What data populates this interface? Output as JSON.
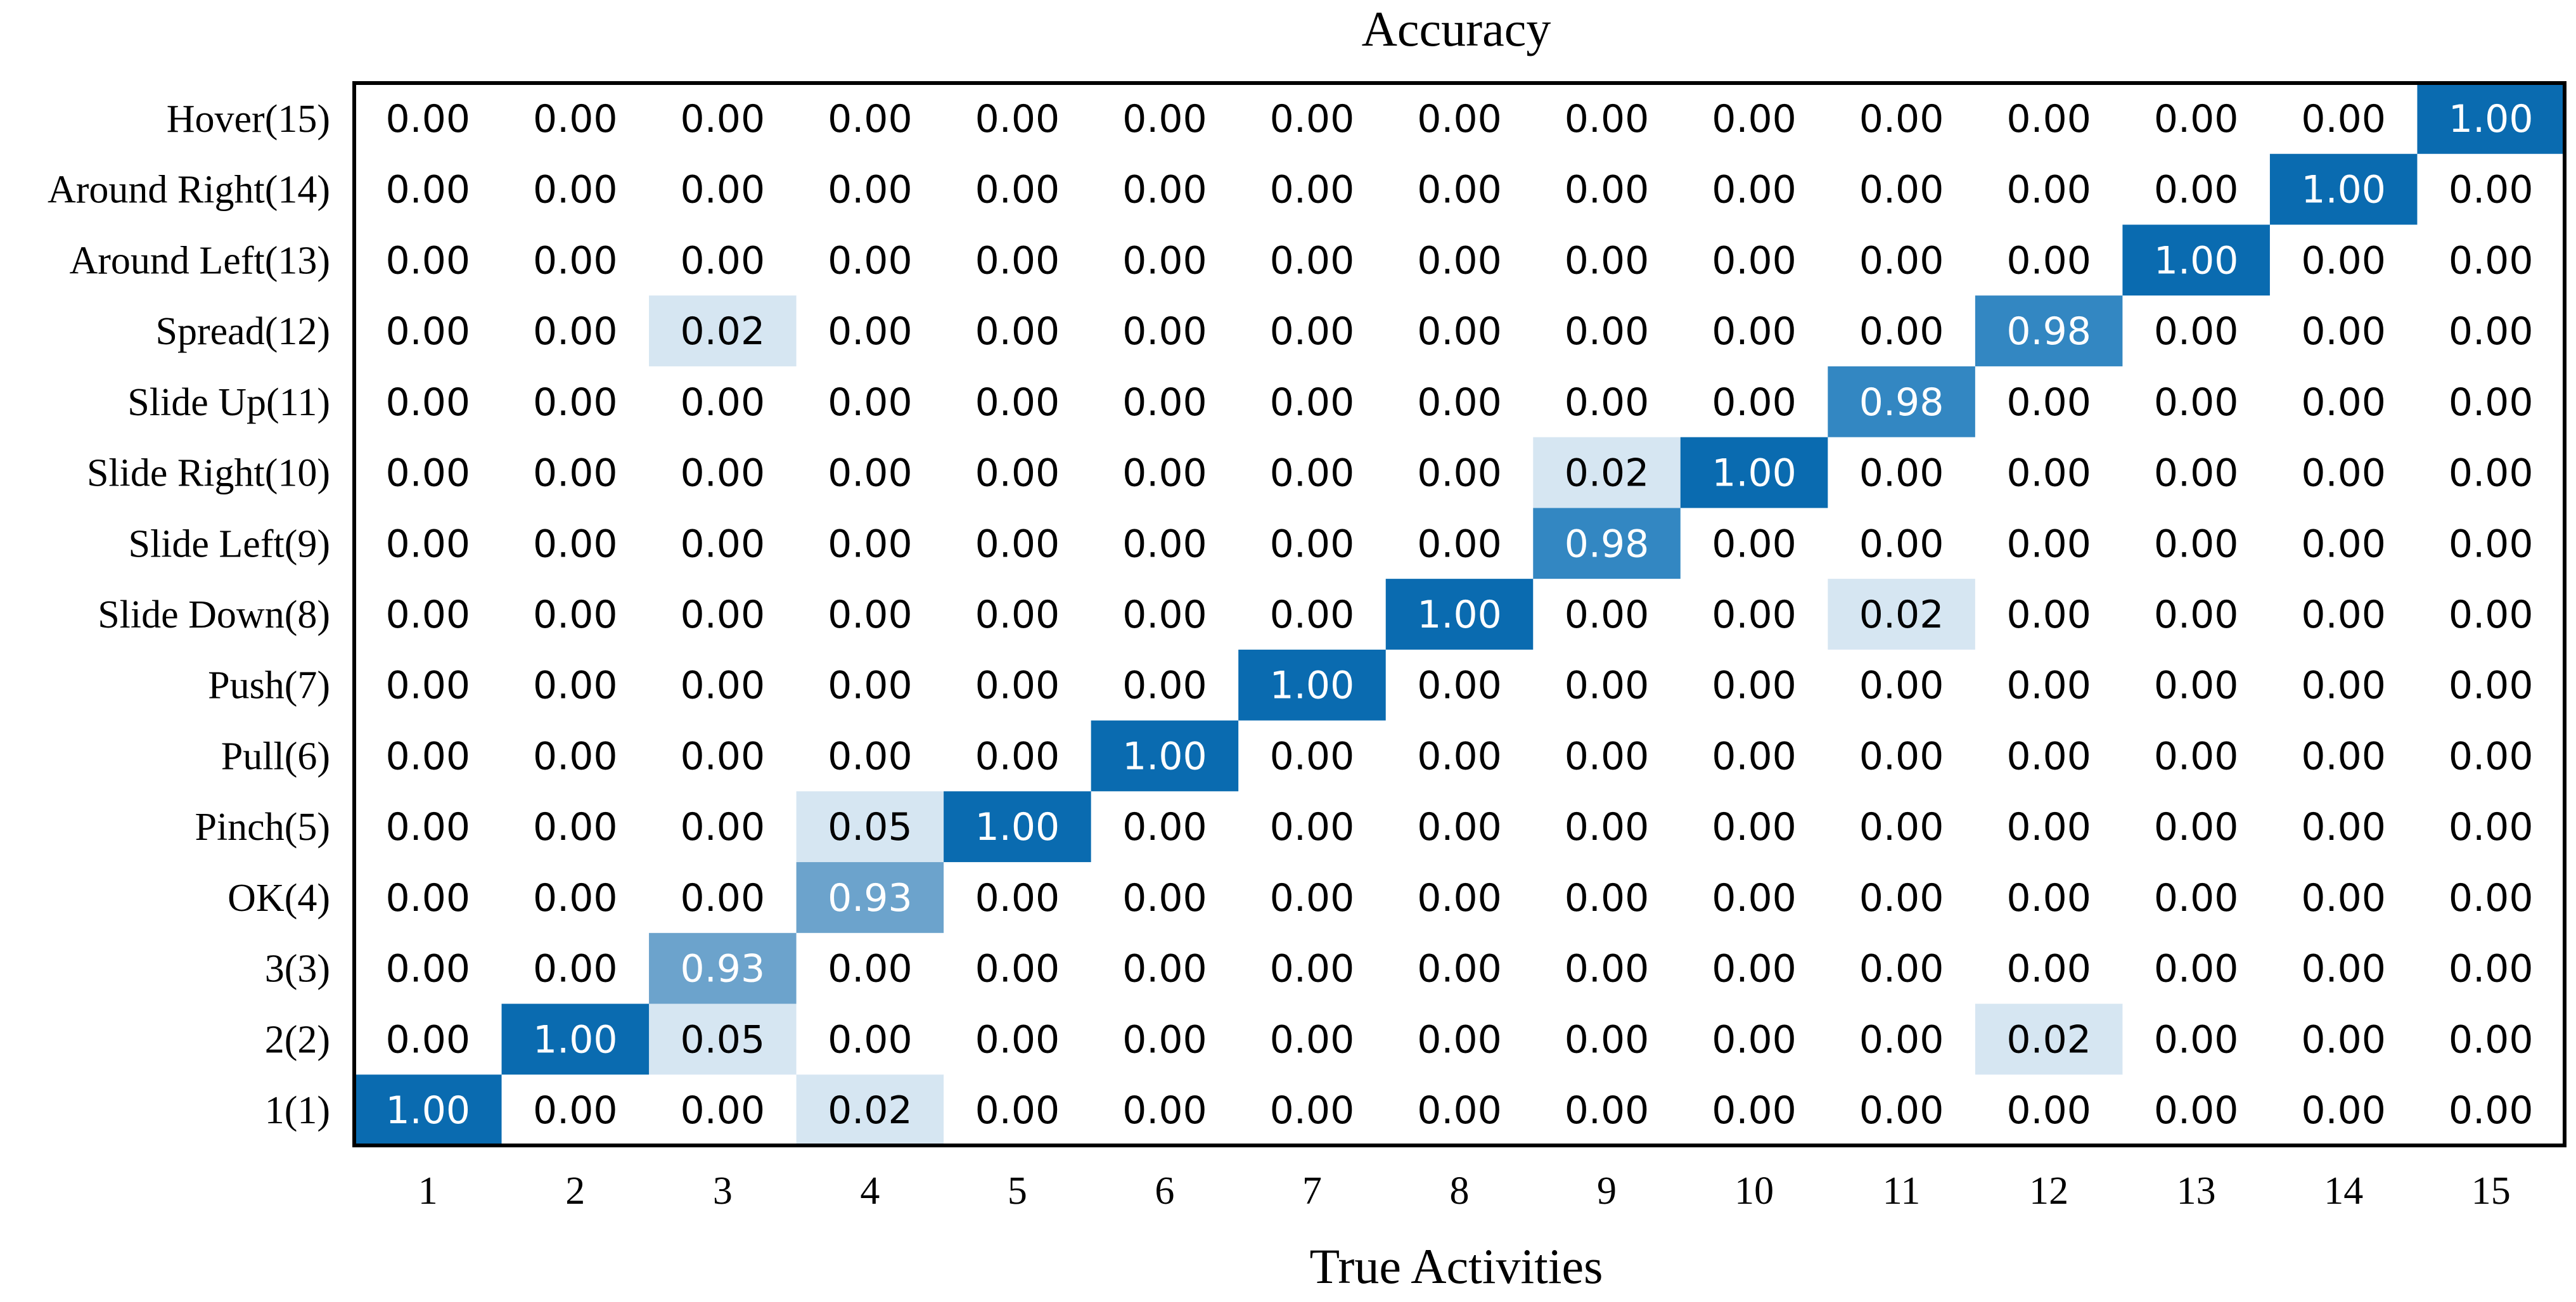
{
  "chart_data": {
    "type": "heatmap",
    "title": "Accuracy",
    "xlabel": "True Activities",
    "ylabel": "",
    "x_categories": [
      "1",
      "2",
      "3",
      "4",
      "5",
      "6",
      "7",
      "8",
      "9",
      "10",
      "11",
      "12",
      "13",
      "14",
      "15"
    ],
    "y_categories_top_to_bottom": [
      "Hover(15)",
      "Around Right(14)",
      "Around Left(13)",
      "Spread(12)",
      "Slide Up(11)",
      "Slide Right(10)",
      "Slide Left(9)",
      "Slide Down(8)",
      "Push(7)",
      "Pull(6)",
      "Pinch(5)",
      "OK(4)",
      "3(3)",
      "2(2)",
      "1(1)"
    ],
    "values_top_to_bottom": [
      [
        0.0,
        0.0,
        0.0,
        0.0,
        0.0,
        0.0,
        0.0,
        0.0,
        0.0,
        0.0,
        0.0,
        0.0,
        0.0,
        0.0,
        1.0
      ],
      [
        0.0,
        0.0,
        0.0,
        0.0,
        0.0,
        0.0,
        0.0,
        0.0,
        0.0,
        0.0,
        0.0,
        0.0,
        0.0,
        1.0,
        0.0
      ],
      [
        0.0,
        0.0,
        0.0,
        0.0,
        0.0,
        0.0,
        0.0,
        0.0,
        0.0,
        0.0,
        0.0,
        0.0,
        1.0,
        0.0,
        0.0
      ],
      [
        0.0,
        0.0,
        0.02,
        0.0,
        0.0,
        0.0,
        0.0,
        0.0,
        0.0,
        0.0,
        0.0,
        0.98,
        0.0,
        0.0,
        0.0
      ],
      [
        0.0,
        0.0,
        0.0,
        0.0,
        0.0,
        0.0,
        0.0,
        0.0,
        0.0,
        0.0,
        0.98,
        0.0,
        0.0,
        0.0,
        0.0
      ],
      [
        0.0,
        0.0,
        0.0,
        0.0,
        0.0,
        0.0,
        0.0,
        0.0,
        0.02,
        1.0,
        0.0,
        0.0,
        0.0,
        0.0,
        0.0
      ],
      [
        0.0,
        0.0,
        0.0,
        0.0,
        0.0,
        0.0,
        0.0,
        0.0,
        0.98,
        0.0,
        0.0,
        0.0,
        0.0,
        0.0,
        0.0
      ],
      [
        0.0,
        0.0,
        0.0,
        0.0,
        0.0,
        0.0,
        0.0,
        1.0,
        0.0,
        0.0,
        0.02,
        0.0,
        0.0,
        0.0,
        0.0
      ],
      [
        0.0,
        0.0,
        0.0,
        0.0,
        0.0,
        0.0,
        1.0,
        0.0,
        0.0,
        0.0,
        0.0,
        0.0,
        0.0,
        0.0,
        0.0
      ],
      [
        0.0,
        0.0,
        0.0,
        0.0,
        0.0,
        1.0,
        0.0,
        0.0,
        0.0,
        0.0,
        0.0,
        0.0,
        0.0,
        0.0,
        0.0
      ],
      [
        0.0,
        0.0,
        0.0,
        0.05,
        1.0,
        0.0,
        0.0,
        0.0,
        0.0,
        0.0,
        0.0,
        0.0,
        0.0,
        0.0,
        0.0
      ],
      [
        0.0,
        0.0,
        0.0,
        0.93,
        0.0,
        0.0,
        0.0,
        0.0,
        0.0,
        0.0,
        0.0,
        0.0,
        0.0,
        0.0,
        0.0
      ],
      [
        0.0,
        0.0,
        0.93,
        0.0,
        0.0,
        0.0,
        0.0,
        0.0,
        0.0,
        0.0,
        0.0,
        0.0,
        0.0,
        0.0,
        0.0
      ],
      [
        0.0,
        1.0,
        0.05,
        0.0,
        0.0,
        0.0,
        0.0,
        0.0,
        0.0,
        0.0,
        0.0,
        0.02,
        0.0,
        0.0,
        0.0
      ],
      [
        1.0,
        0.0,
        0.0,
        0.02,
        0.0,
        0.0,
        0.0,
        0.0,
        0.0,
        0.0,
        0.0,
        0.0,
        0.0,
        0.0,
        0.0
      ]
    ],
    "value_range": [
      0,
      1
    ],
    "colormap": "Blues",
    "colors": {
      "high": "#0a6bb0",
      "high_mid": "#3387c2",
      "mid": "#6ca3cc",
      "low": "#d6e6f2",
      "zero": "#ffffff",
      "text_dark": "#000000",
      "text_light": "#ffffff",
      "frame": "#000000"
    },
    "grid": false,
    "legend": "none",
    "colorbar": false
  }
}
